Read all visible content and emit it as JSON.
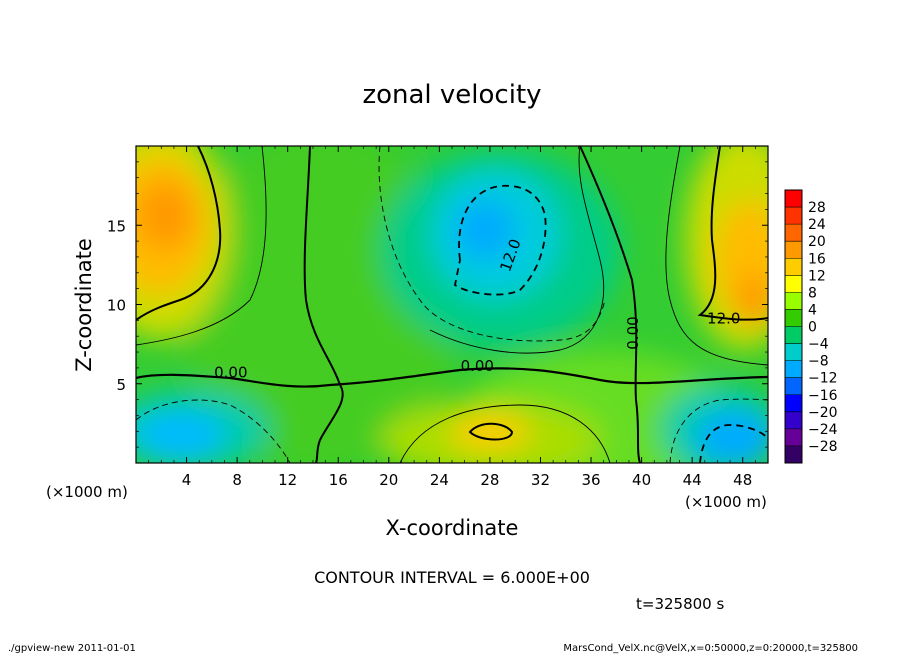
{
  "chart_data": {
    "type": "heatmap",
    "title": "zonal velocity",
    "xlabel": "X-coordinate",
    "ylabel": "Z-coordinate",
    "x_unit_label": "(×1000 m)",
    "z_unit_label": "(×1000 m)",
    "xlim": [
      0,
      50
    ],
    "ylim": [
      0,
      20
    ],
    "x_ticks": [
      "4",
      "8",
      "12",
      "16",
      "20",
      "24",
      "28",
      "32",
      "36",
      "40",
      "44",
      "48"
    ],
    "x_tick_values": [
      4,
      8,
      12,
      16,
      20,
      24,
      28,
      32,
      36,
      40,
      44,
      48
    ],
    "y_ticks": [
      "5",
      "10",
      "15"
    ],
    "y_tick_values": [
      5,
      10,
      15
    ],
    "colorbar": {
      "labels": [
        "28",
        "24",
        "20",
        "16",
        "12",
        "8",
        "4",
        "0",
        "−4",
        "−8",
        "−12",
        "−16",
        "−20",
        "−24",
        "−28"
      ],
      "levels": [
        28,
        24,
        20,
        16,
        12,
        8,
        4,
        0,
        -4,
        -8,
        -12,
        -16,
        -20,
        -24,
        -28
      ],
      "colors": [
        "#ff0000",
        "#ff3300",
        "#ff6600",
        "#ff9900",
        "#ffcc00",
        "#ffff00",
        "#99ff00",
        "#33cc00",
        "#00cc66",
        "#00cccc",
        "#00aaff",
        "#0066ff",
        "#0000ff",
        "#3300cc",
        "#660099",
        "#330066"
      ]
    },
    "contour_labels": [
      {
        "text": "0.00",
        "x": 7.5,
        "z": 5.4
      },
      {
        "text": "0.00",
        "x": 27,
        "z": 5.8
      },
      {
        "text": "12.0",
        "x": 30,
        "z": 13
      },
      {
        "text": "0.00",
        "x": 39.7,
        "z": 8.2
      },
      {
        "text": "12.0",
        "x": 46.5,
        "z": 8.8
      }
    ],
    "contour_interval": "CONTOUR INTERVAL = 6.000E+00",
    "time": "t=325800 s"
  },
  "footer": {
    "left": "./gpview-new   2011-01-01",
    "right": "MarsCond_VelX.nc@VelX,x=0:50000,z=0:20000,t=325800"
  }
}
